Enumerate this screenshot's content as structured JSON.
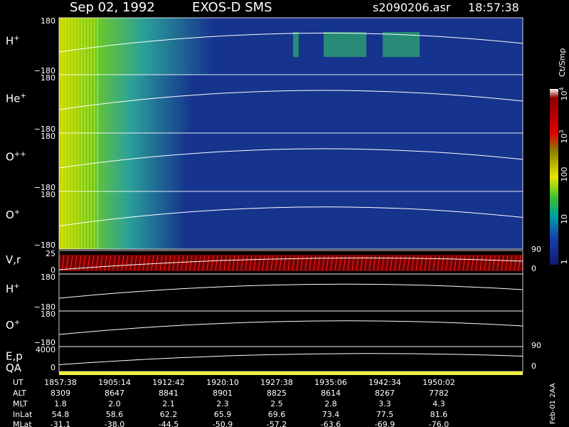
{
  "header": {
    "date": "Sep 02, 1992",
    "instrument": "EXOS-D SMS",
    "file": "s2090206.asr",
    "time": "18:57:38"
  },
  "panels": [
    {
      "name": "H",
      "sup": "+",
      "ticks": [
        "180",
        "−180"
      ]
    },
    {
      "name": "He",
      "sup": "+",
      "ticks": [
        "180",
        "−180"
      ]
    },
    {
      "name": "O",
      "sup": "++",
      "ticks": [
        "180",
        "−180"
      ]
    },
    {
      "name": "O",
      "sup": "+",
      "ticks": [
        "180",
        "−180"
      ]
    },
    {
      "name": "V,r",
      "ticks": [
        "25",
        "0"
      ],
      "right_ticks": [
        "90",
        "0"
      ]
    },
    {
      "name": "H",
      "sup": "+",
      "ticks": [
        "180",
        "−180"
      ]
    },
    {
      "name": "O",
      "sup": "+",
      "ticks": [
        "180",
        "−180"
      ]
    },
    {
      "name": "E,p",
      "ticks": [
        "4000",
        "0"
      ],
      "right_ticks": [
        "90",
        "0"
      ]
    },
    {
      "name": "QA"
    }
  ],
  "colorbar": {
    "unit": "Ct/Smp",
    "labels": [
      {
        "base": "10",
        "sup": "4"
      },
      {
        "base": "10",
        "sup": "3"
      },
      {
        "base": "100"
      },
      {
        "base": "10"
      },
      {
        "base": "1"
      }
    ]
  },
  "footer": {
    "rows": [
      {
        "name": "UT",
        "values": [
          "1857:38",
          "1905:14",
          "1912:42",
          "1920:10",
          "1927:38",
          "1935:06",
          "1942:34",
          "1950:02"
        ]
      },
      {
        "name": "ALT",
        "values": [
          "8309",
          "8647",
          "8841",
          "8901",
          "8825",
          "8614",
          "8267",
          "7782"
        ]
      },
      {
        "name": "MLT",
        "values": [
          "1.8",
          "2.0",
          "2.1",
          "2.3",
          "2.5",
          "2.8",
          "3.3",
          "4.3"
        ]
      },
      {
        "name": "InLat",
        "values": [
          "54.8",
          "58.6",
          "62.2",
          "65.9",
          "69.6",
          "73.4",
          "77.5",
          "81.6"
        ]
      },
      {
        "name": "MLat",
        "values": [
          "-31.1",
          "-38.0",
          "-44.5",
          "-50.9",
          "-57.2",
          "-63.6",
          "-69.9",
          "-76.0"
        ]
      }
    ],
    "note": "Feb-01 2AA"
  }
}
